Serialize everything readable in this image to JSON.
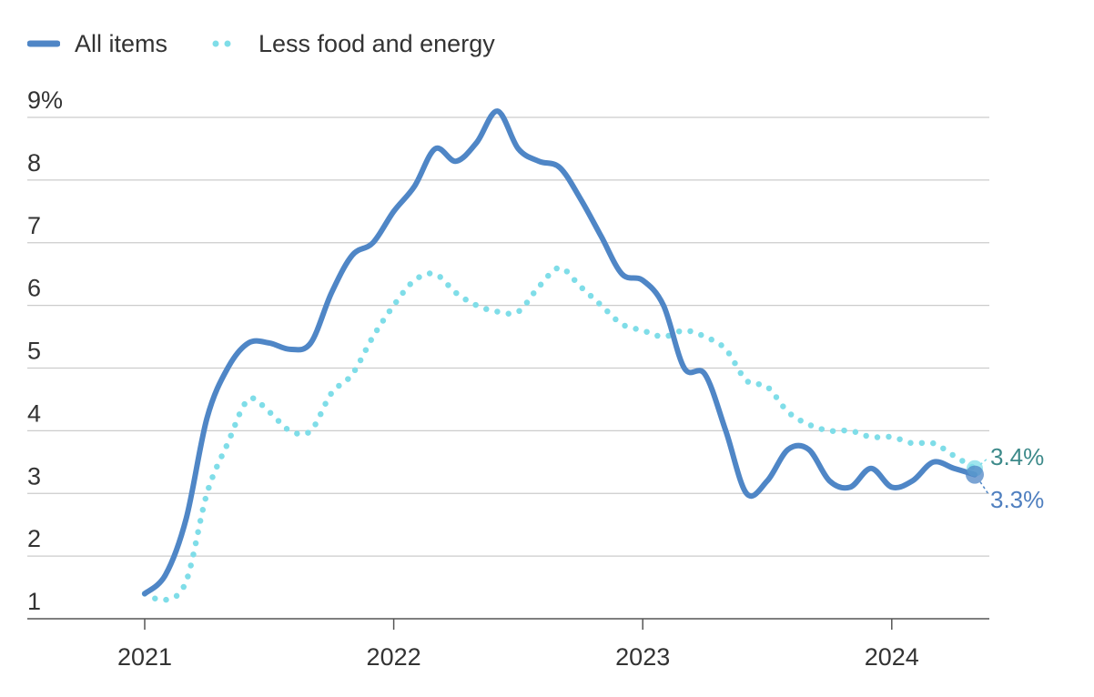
{
  "legend": {
    "all_items": "All items",
    "core": "Less food and energy"
  },
  "colors": {
    "all_items": "#4f86c6",
    "core": "#7fdde8",
    "core_label": "#3d8a8a",
    "all_label": "#4f7fbf",
    "grid": "#cccccc",
    "axis": "#555555"
  },
  "chart_data": {
    "type": "line",
    "title": "",
    "xlabel": "",
    "ylabel": "",
    "ylim": [
      1,
      9
    ],
    "y_ticks": [
      "1",
      "2",
      "3",
      "4",
      "5",
      "6",
      "7",
      "8",
      "9%"
    ],
    "x_ticks": [
      "2021",
      "2022",
      "2023",
      "2024"
    ],
    "x_start": "2021-01",
    "x_end": "2024-05",
    "grid": true,
    "legend_position": "top-left",
    "series": [
      {
        "name": "All items",
        "style": "solid",
        "values": [
          1.4,
          1.7,
          2.6,
          4.2,
          5.0,
          5.4,
          5.4,
          5.3,
          5.4,
          6.2,
          6.8,
          7.0,
          7.5,
          7.9,
          8.5,
          8.3,
          8.6,
          9.1,
          8.5,
          8.3,
          8.2,
          7.7,
          7.1,
          6.5,
          6.4,
          6.0,
          5.0,
          4.9,
          4.0,
          3.0,
          3.2,
          3.7,
          3.7,
          3.2,
          3.1,
          3.4,
          3.1,
          3.2,
          3.5,
          3.4,
          3.3
        ]
      },
      {
        "name": "Less food and energy",
        "style": "dotted",
        "values": [
          1.4,
          1.3,
          1.6,
          3.0,
          3.8,
          4.5,
          4.3,
          4.0,
          4.0,
          4.6,
          4.9,
          5.5,
          6.0,
          6.4,
          6.5,
          6.2,
          6.0,
          5.9,
          5.9,
          6.3,
          6.6,
          6.3,
          6.0,
          5.7,
          5.6,
          5.5,
          5.6,
          5.5,
          5.3,
          4.8,
          4.7,
          4.3,
          4.1,
          4.0,
          4.0,
          3.9,
          3.9,
          3.8,
          3.8,
          3.6,
          3.4
        ]
      }
    ],
    "end_labels": {
      "core": "3.4%",
      "all_items": "3.3%"
    }
  }
}
